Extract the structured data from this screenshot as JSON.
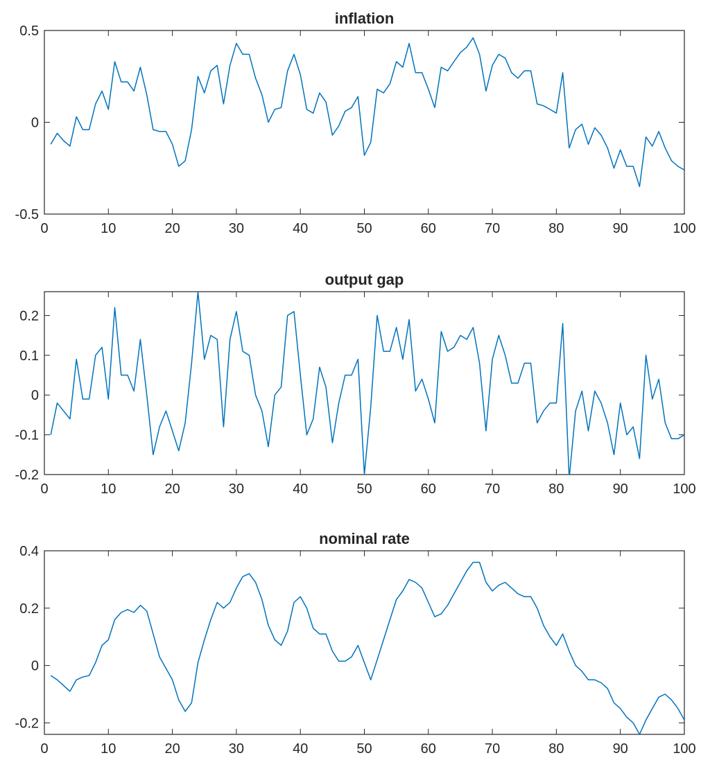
{
  "chart_data": [
    {
      "type": "line",
      "title": "inflation",
      "xlabel": "",
      "ylabel": "",
      "xlim": [
        0,
        100
      ],
      "ylim": [
        -0.5,
        0.5
      ],
      "xticks": [
        0,
        10,
        20,
        30,
        40,
        50,
        60,
        70,
        80,
        90,
        100
      ],
      "xtick_labels": [
        "0",
        "10",
        "20",
        "30",
        "40",
        "50",
        "60",
        "70",
        "80",
        "90",
        "100"
      ],
      "yticks": [
        -0.5,
        0,
        0.5
      ],
      "ytick_labels": [
        "-0.5",
        "0",
        "0.5"
      ],
      "grid": false,
      "color": "#0072BD",
      "x": [
        1,
        2,
        3,
        4,
        5,
        6,
        7,
        8,
        9,
        10,
        11,
        12,
        13,
        14,
        15,
        16,
        17,
        18,
        19,
        20,
        21,
        22,
        23,
        24,
        25,
        26,
        27,
        28,
        29,
        30,
        31,
        32,
        33,
        34,
        35,
        36,
        37,
        38,
        39,
        40,
        41,
        42,
        43,
        44,
        45,
        46,
        47,
        48,
        49,
        50,
        51,
        52,
        53,
        54,
        55,
        56,
        57,
        58,
        59,
        60,
        61,
        62,
        63,
        64,
        65,
        66,
        67,
        68,
        69,
        70,
        71,
        72,
        73,
        74,
        75,
        76,
        77,
        78,
        79,
        80,
        81,
        82,
        83,
        84,
        85,
        86,
        87,
        88,
        89,
        90,
        91,
        92,
        93,
        94,
        95,
        96,
        97,
        98,
        99,
        100
      ],
      "values": [
        -0.12,
        -0.06,
        -0.1,
        -0.13,
        0.03,
        -0.04,
        -0.04,
        0.1,
        0.17,
        0.07,
        0.33,
        0.22,
        0.22,
        0.17,
        0.3,
        0.15,
        -0.04,
        -0.05,
        -0.05,
        -0.12,
        -0.24,
        -0.21,
        -0.04,
        0.25,
        0.16,
        0.28,
        0.31,
        0.1,
        0.31,
        0.43,
        0.37,
        0.37,
        0.24,
        0.15,
        0.0,
        0.07,
        0.08,
        0.28,
        0.37,
        0.26,
        0.07,
        0.05,
        0.16,
        0.11,
        -0.07,
        -0.02,
        0.06,
        0.08,
        0.14,
        -0.18,
        -0.11,
        0.18,
        0.16,
        0.21,
        0.33,
        0.3,
        0.43,
        0.27,
        0.27,
        0.18,
        0.08,
        0.3,
        0.28,
        0.33,
        0.38,
        0.41,
        0.46,
        0.37,
        0.17,
        0.31,
        0.37,
        0.35,
        0.27,
        0.24,
        0.28,
        0.28,
        0.1,
        0.09,
        0.07,
        0.05,
        0.27,
        -0.14,
        -0.04,
        -0.01,
        -0.12,
        -0.03,
        -0.07,
        -0.14,
        -0.25,
        -0.15,
        -0.24,
        -0.24,
        -0.35,
        -0.08,
        -0.13,
        -0.05,
        -0.14,
        -0.21,
        -0.24,
        -0.26
      ]
    },
    {
      "type": "line",
      "title": "output gap",
      "xlabel": "",
      "ylabel": "",
      "xlim": [
        0,
        100
      ],
      "ylim": [
        -0.2,
        0.26
      ],
      "xticks": [
        0,
        10,
        20,
        30,
        40,
        50,
        60,
        70,
        80,
        90,
        100
      ],
      "xtick_labels": [
        "0",
        "10",
        "20",
        "30",
        "40",
        "50",
        "60",
        "70",
        "80",
        "90",
        "100"
      ],
      "yticks": [
        -0.2,
        -0.1,
        0,
        0.1,
        0.2
      ],
      "ytick_labels": [
        "-0.2",
        "-0.1",
        "0",
        "0.1",
        "0.2"
      ],
      "grid": false,
      "color": "#0072BD",
      "x": [
        1,
        2,
        3,
        4,
        5,
        6,
        7,
        8,
        9,
        10,
        11,
        12,
        13,
        14,
        15,
        16,
        17,
        18,
        19,
        20,
        21,
        22,
        23,
        24,
        25,
        26,
        27,
        28,
        29,
        30,
        31,
        32,
        33,
        34,
        35,
        36,
        37,
        38,
        39,
        40,
        41,
        42,
        43,
        44,
        45,
        46,
        47,
        48,
        49,
        50,
        51,
        52,
        53,
        54,
        55,
        56,
        57,
        58,
        59,
        60,
        61,
        62,
        63,
        64,
        65,
        66,
        67,
        68,
        69,
        70,
        71,
        72,
        73,
        74,
        75,
        76,
        77,
        78,
        79,
        80,
        81,
        82,
        83,
        84,
        85,
        86,
        87,
        88,
        89,
        90,
        91,
        92,
        93,
        94,
        95,
        96,
        97,
        98,
        99,
        100
      ],
      "values": [
        -0.1,
        -0.02,
        -0.04,
        -0.06,
        0.09,
        -0.01,
        -0.01,
        0.1,
        0.12,
        -0.01,
        0.22,
        0.05,
        0.05,
        0.01,
        0.14,
        0.0,
        -0.15,
        -0.08,
        -0.04,
        -0.09,
        -0.14,
        -0.07,
        0.08,
        0.26,
        0.09,
        0.15,
        0.14,
        -0.08,
        0.14,
        0.21,
        0.11,
        0.1,
        0.0,
        -0.04,
        -0.13,
        0.0,
        0.02,
        0.2,
        0.21,
        0.05,
        -0.1,
        -0.06,
        0.07,
        0.02,
        -0.12,
        -0.02,
        0.05,
        0.05,
        0.09,
        -0.2,
        -0.03,
        0.2,
        0.11,
        0.11,
        0.17,
        0.09,
        0.19,
        0.01,
        0.04,
        -0.01,
        -0.07,
        0.16,
        0.11,
        0.12,
        0.15,
        0.14,
        0.17,
        0.08,
        -0.09,
        0.09,
        0.15,
        0.1,
        0.03,
        0.03,
        0.08,
        0.08,
        -0.07,
        -0.04,
        -0.02,
        -0.02,
        0.18,
        -0.21,
        -0.04,
        0.01,
        -0.09,
        0.01,
        -0.02,
        -0.07,
        -0.15,
        -0.02,
        -0.1,
        -0.08,
        -0.16,
        0.1,
        -0.01,
        0.04,
        -0.07,
        -0.11,
        -0.11,
        -0.1
      ]
    },
    {
      "type": "line",
      "title": "nominal rate",
      "xlabel": "",
      "ylabel": "",
      "xlim": [
        0,
        100
      ],
      "ylim": [
        -0.24,
        0.4
      ],
      "xticks": [
        0,
        10,
        20,
        30,
        40,
        50,
        60,
        70,
        80,
        90,
        100
      ],
      "xtick_labels": [
        "0",
        "10",
        "20",
        "30",
        "40",
        "50",
        "60",
        "70",
        "80",
        "90",
        "100"
      ],
      "yticks": [
        -0.2,
        0,
        0.2,
        0.4
      ],
      "ytick_labels": [
        "-0.2",
        "0",
        "0.2",
        "0.4"
      ],
      "grid": false,
      "color": "#0072BD",
      "x": [
        1,
        2,
        3,
        4,
        5,
        6,
        7,
        8,
        9,
        10,
        11,
        12,
        13,
        14,
        15,
        16,
        17,
        18,
        19,
        20,
        21,
        22,
        23,
        24,
        25,
        26,
        27,
        28,
        29,
        30,
        31,
        32,
        33,
        34,
        35,
        36,
        37,
        38,
        39,
        40,
        41,
        42,
        43,
        44,
        45,
        46,
        47,
        48,
        49,
        50,
        51,
        52,
        53,
        54,
        55,
        56,
        57,
        58,
        59,
        60,
        61,
        62,
        63,
        64,
        65,
        66,
        67,
        68,
        69,
        70,
        71,
        72,
        73,
        74,
        75,
        76,
        77,
        78,
        79,
        80,
        81,
        82,
        83,
        84,
        85,
        86,
        87,
        88,
        89,
        90,
        91,
        92,
        93,
        94,
        95,
        96,
        97,
        98,
        99,
        100
      ],
      "values": [
        -0.035,
        -0.05,
        -0.07,
        -0.09,
        -0.05,
        -0.04,
        -0.035,
        0.01,
        0.07,
        0.09,
        0.16,
        0.185,
        0.195,
        0.185,
        0.21,
        0.19,
        0.11,
        0.03,
        -0.01,
        -0.05,
        -0.12,
        -0.16,
        -0.13,
        0.01,
        0.09,
        0.16,
        0.22,
        0.2,
        0.22,
        0.27,
        0.31,
        0.32,
        0.29,
        0.23,
        0.14,
        0.09,
        0.07,
        0.12,
        0.22,
        0.24,
        0.2,
        0.13,
        0.11,
        0.11,
        0.05,
        0.015,
        0.015,
        0.03,
        0.07,
        0.01,
        -0.05,
        0.02,
        0.09,
        0.16,
        0.23,
        0.26,
        0.3,
        0.29,
        0.27,
        0.22,
        0.17,
        0.18,
        0.21,
        0.25,
        0.29,
        0.33,
        0.36,
        0.36,
        0.29,
        0.26,
        0.28,
        0.29,
        0.27,
        0.25,
        0.24,
        0.24,
        0.2,
        0.14,
        0.1,
        0.07,
        0.11,
        0.05,
        0.0,
        -0.02,
        -0.05,
        -0.05,
        -0.06,
        -0.08,
        -0.13,
        -0.15,
        -0.18,
        -0.2,
        -0.24,
        -0.19,
        -0.15,
        -0.11,
        -0.1,
        -0.12,
        -0.15,
        -0.19
      ]
    }
  ]
}
